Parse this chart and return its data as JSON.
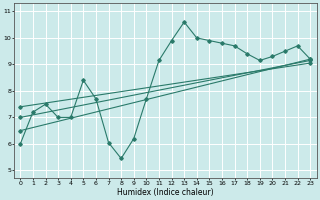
{
  "xlabel": "Humidex (Indice chaleur)",
  "ylabel": "",
  "xlim": [
    -0.5,
    23.5
  ],
  "ylim": [
    4.7,
    11.3
  ],
  "yticks": [
    5,
    6,
    7,
    8,
    9,
    10,
    11
  ],
  "xticks": [
    0,
    1,
    2,
    3,
    4,
    5,
    6,
    7,
    8,
    9,
    10,
    11,
    12,
    13,
    14,
    15,
    16,
    17,
    18,
    19,
    20,
    21,
    22,
    23
  ],
  "bg_color": "#cceaea",
  "line_color": "#2a7a6a",
  "grid_color": "#ffffff",
  "main_line": {
    "x": [
      0,
      1,
      2,
      3,
      4,
      5,
      6,
      7,
      8,
      9,
      10,
      11,
      12,
      13,
      14,
      15,
      16,
      17,
      18,
      19,
      20,
      21,
      22,
      23
    ],
    "y": [
      6.0,
      7.2,
      7.5,
      7.0,
      7.0,
      8.4,
      7.7,
      6.05,
      5.45,
      6.2,
      7.7,
      9.15,
      9.9,
      10.6,
      10.0,
      9.9,
      9.8,
      9.7,
      9.4,
      9.15,
      9.3,
      9.5,
      9.7,
      9.2
    ]
  },
  "trend_lines": [
    {
      "x": [
        0,
        23
      ],
      "y": [
        6.5,
        9.2
      ]
    },
    {
      "x": [
        0,
        23
      ],
      "y": [
        7.0,
        9.15
      ]
    },
    {
      "x": [
        0,
        23
      ],
      "y": [
        7.4,
        9.05
      ]
    }
  ]
}
